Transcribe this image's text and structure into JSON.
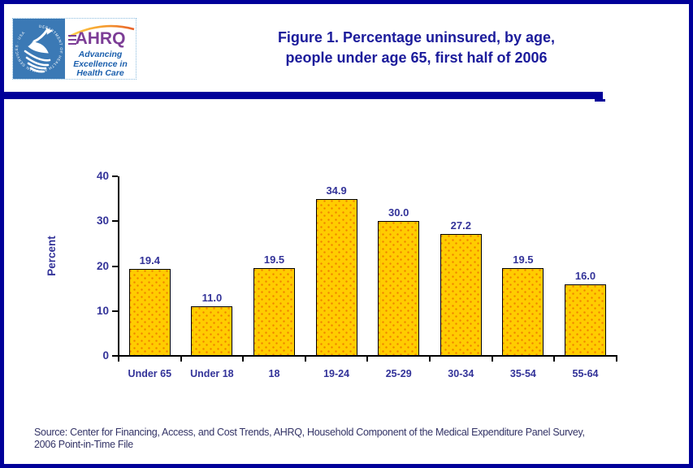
{
  "header": {
    "title_line1": "Figure 1. Percentage uninsured, by age,",
    "title_line2": "people under age 65, first half of 2006",
    "logo": {
      "hhs_seal_ring_text": "DEPARTMENT OF HEALTH & HUMAN SERVICES · USA",
      "ahrq_acronym": "AHRQ",
      "tagline_line1": "Advancing",
      "tagline_line2": "Excellence in",
      "tagline_line3": "Health Care"
    }
  },
  "chart_data": {
    "type": "bar",
    "title": "Figure 1. Percentage uninsured, by age, people under age 65, first half of 2006",
    "categories": [
      "Under 65",
      "Under 18",
      "18",
      "19-24",
      "25-29",
      "30-34",
      "35-54",
      "55-64"
    ],
    "values": [
      19.4,
      11.0,
      19.5,
      34.9,
      30.0,
      27.2,
      19.5,
      16.0
    ],
    "value_labels": [
      "19.4",
      "11.0",
      "19.5",
      "34.9",
      "30.0",
      "27.2",
      "19.5",
      "16.0"
    ],
    "xlabel": "",
    "ylabel": "Percent",
    "ylim": [
      0,
      40
    ],
    "y_ticks": [
      0,
      10,
      20,
      30,
      40
    ],
    "grid": false,
    "legend": false,
    "bar_fill_color": "#FFCC00",
    "bar_dot_color": "#F08300",
    "bar_border_color": "#000000",
    "label_color": "#333399"
  },
  "source": {
    "line1": "Source: Center for Financing, Access, and Cost Trends, AHRQ, Household Component of the Medical Expenditure Panel Survey,",
    "line2": "2006 Point-in-Time File"
  },
  "colors": {
    "frame_navy": "#000099",
    "title_navy": "#1B1B9B",
    "hhs_blue": "#3B79B5",
    "ahrq_purple": "#7C3D96",
    "tagline_blue": "#1B5FAD",
    "source_text": "#333366"
  }
}
